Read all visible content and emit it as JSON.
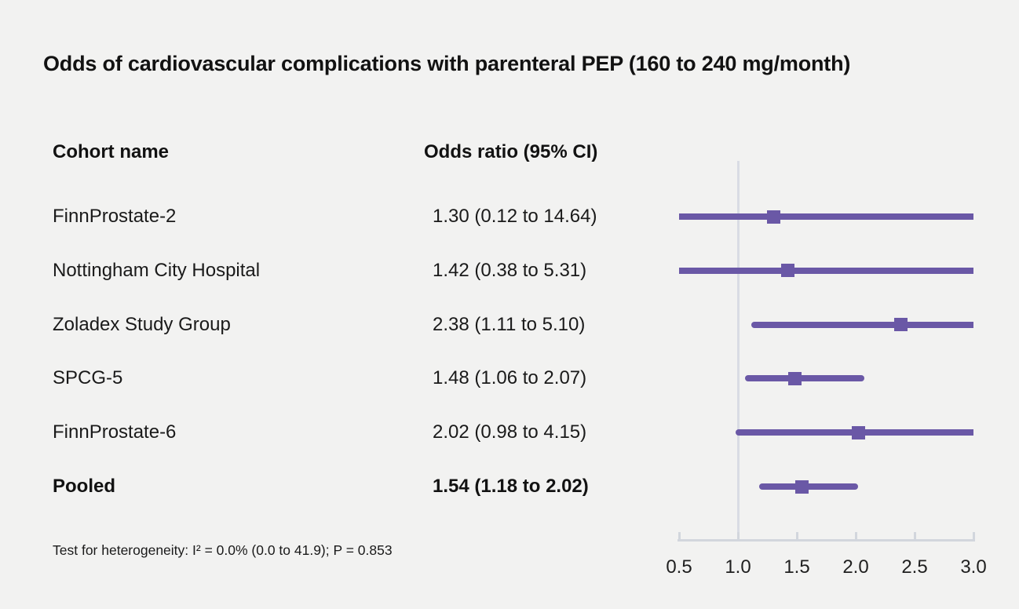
{
  "title": "Odds of cardiovascular complications with parenteral PEP (160 to 240 mg/month)",
  "columns": {
    "cohort": "Cohort name",
    "odds": "Odds ratio (95% CI)"
  },
  "footnote": "Test for heterogeneity: I² = 0.0% (0.0 to 41.9); P = 0.853",
  "colors": {
    "background": "#f2f2f1",
    "text": "#121212",
    "marker_purple": "#6a58a6",
    "reference_line": "#d9dce4",
    "axis": "#d2d6dd"
  },
  "chart_data": {
    "type": "forest",
    "title": "Odds of cardiovascular complications with parenteral PEP (160 to 240 mg/month)",
    "xlabel": "Odds ratio",
    "xlim": [
      0.5,
      3.0
    ],
    "x_ticks": [
      0.5,
      1.0,
      1.5,
      2.0,
      2.5,
      3.0
    ],
    "reference_value": 1.0,
    "grid": false,
    "rows": [
      {
        "cohort": "FinnProstate-2",
        "or": 1.3,
        "ci_low": 0.12,
        "ci_high": 14.64,
        "label": "1.30 (0.12 to 14.64)",
        "pooled": false
      },
      {
        "cohort": "Nottingham City Hospital",
        "or": 1.42,
        "ci_low": 0.38,
        "ci_high": 5.31,
        "label": "1.42 (0.38 to 5.31)",
        "pooled": false
      },
      {
        "cohort": "Zoladex Study Group",
        "or": 2.38,
        "ci_low": 1.11,
        "ci_high": 5.1,
        "label": "2.38 (1.11 to 5.10)",
        "pooled": false
      },
      {
        "cohort": "SPCG-5",
        "or": 1.48,
        "ci_low": 1.06,
        "ci_high": 2.07,
        "label": "1.48 (1.06 to 2.07)",
        "pooled": false
      },
      {
        "cohort": "FinnProstate-6",
        "or": 2.02,
        "ci_low": 0.98,
        "ci_high": 4.15,
        "label": "2.02 (0.98 to 4.15)",
        "pooled": false
      },
      {
        "cohort": "Pooled",
        "or": 1.54,
        "ci_low": 1.18,
        "ci_high": 2.02,
        "label": "1.54 (1.18 to 2.02)",
        "pooled": true
      }
    ],
    "heterogeneity_note": "Test for heterogeneity: I² = 0.0% (0.0 to 41.9); P = 0.853"
  }
}
